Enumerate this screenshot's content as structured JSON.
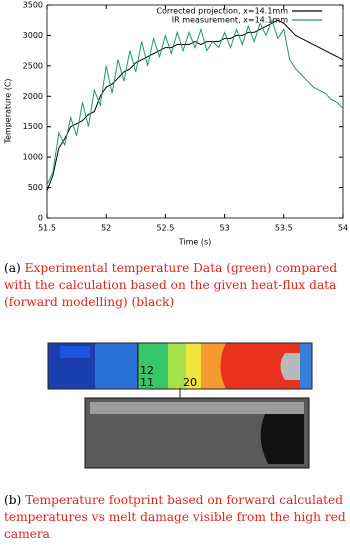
{
  "chart_data": {
    "type": "line",
    "x_label": "Time (s)",
    "y_label": "Temperature (C)",
    "x": [
      51.5,
      51.55,
      51.6,
      51.65,
      51.7,
      51.75,
      51.8,
      51.85,
      51.9,
      51.95,
      52.0,
      52.05,
      52.1,
      52.15,
      52.2,
      52.25,
      52.3,
      52.35,
      52.4,
      52.45,
      52.5,
      52.55,
      52.6,
      52.65,
      52.7,
      52.75,
      52.8,
      52.85,
      52.9,
      52.95,
      53.0,
      53.05,
      53.1,
      53.15,
      53.2,
      53.25,
      53.3,
      53.35,
      53.4,
      53.45,
      53.5,
      53.55,
      53.6,
      53.65,
      53.7,
      53.75,
      53.8,
      53.85,
      53.9,
      53.95,
      54.0
    ],
    "series": [
      {
        "name": "Corrected projection, x=14.1mm",
        "color": "#000000",
        "values": [
          450,
          700,
          1150,
          1300,
          1500,
          1550,
          1600,
          1700,
          1750,
          2000,
          2150,
          2200,
          2300,
          2400,
          2450,
          2550,
          2600,
          2650,
          2700,
          2750,
          2800,
          2800,
          2850,
          2850,
          2850,
          2900,
          2850,
          2900,
          2900,
          2900,
          2950,
          2950,
          3000,
          3000,
          3050,
          3050,
          3100,
          3150,
          3200,
          3250,
          3200,
          3100,
          3000,
          2950,
          2900,
          2850,
          2800,
          2750,
          2700,
          2650,
          2600
        ]
      },
      {
        "name": "IR measurement, x=14.1mm",
        "color": "#1f9a6a",
        "values": [
          550,
          750,
          1400,
          1200,
          1650,
          1350,
          1900,
          1500,
          2100,
          1850,
          2500,
          2050,
          2600,
          2250,
          2750,
          2400,
          2900,
          2500,
          2950,
          2650,
          3000,
          2700,
          3050,
          2750,
          3050,
          2800,
          3100,
          2750,
          2900,
          2800,
          3050,
          2800,
          3100,
          2850,
          3150,
          2900,
          3200,
          3000,
          3250,
          2950,
          3100,
          2600,
          2450,
          2350,
          2250,
          2150,
          2100,
          2050,
          1950,
          1900,
          1800
        ]
      }
    ],
    "xlim": [
      51.5,
      54
    ],
    "xticks": [
      51.5,
      52,
      52.5,
      53,
      53.5,
      54
    ],
    "ylim": [
      0,
      3500
    ],
    "yticks": [
      0,
      500,
      1000,
      1500,
      2000,
      2500,
      3000,
      3500
    ],
    "legend": "top-right"
  },
  "captions": [
    {
      "label": "(a)",
      "text": "Experimental temperature Data (green) compared with the calculation based on the given heat-flux data (forward modelling) (black)"
    },
    {
      "label": "(b)",
      "text": "Temperature footprint based on forward calculated temperatures vs melt damage visible from the high red camera"
    }
  ],
  "figure_labels": [
    "12",
    "11",
    "20"
  ]
}
